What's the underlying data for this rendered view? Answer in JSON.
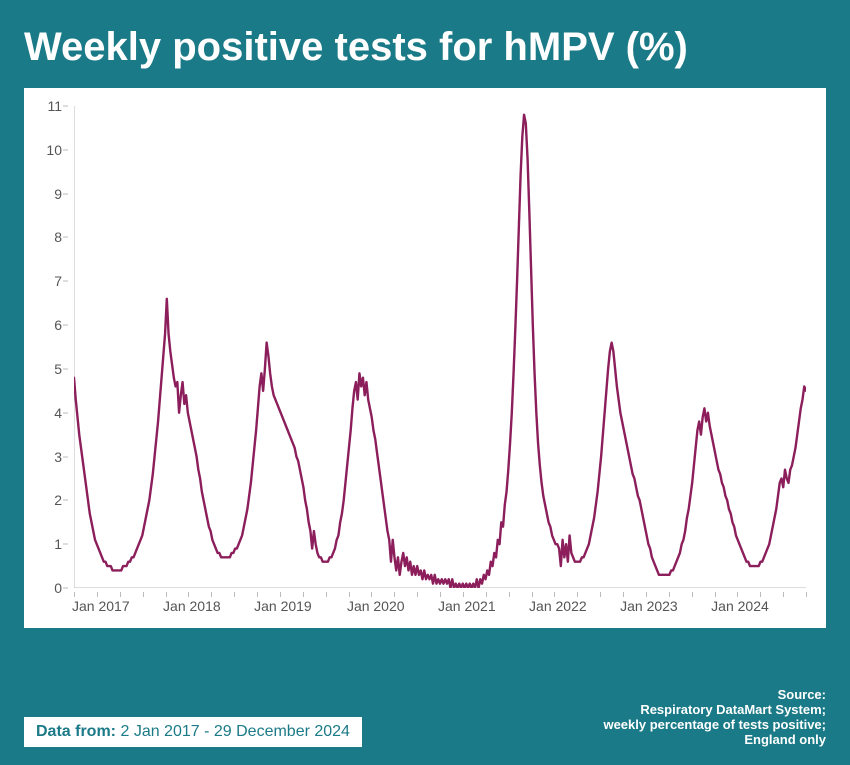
{
  "card": {
    "background_color": "#1b7a87",
    "title": "Weekly positive tests for hMPV (%)",
    "title_fontsize": 40,
    "title_color": "#ffffff"
  },
  "chart": {
    "type": "line",
    "panel_background": "#ffffff",
    "line_color": "#8b1e5b",
    "line_width": 2.4,
    "ylim": [
      0,
      11
    ],
    "ytick_step": 1,
    "y_tick_labels": [
      "0",
      "1",
      "2",
      "3",
      "4",
      "5",
      "6",
      "7",
      "8",
      "9",
      "10",
      "11"
    ],
    "y_label_fontsize": 14,
    "axis_color": "#bbbbbb",
    "tick_length": 5,
    "x_labels": [
      "Jan 2017",
      "Jan 2018",
      "Jan 2019",
      "Jan 2020",
      "Jan 2021",
      "Jan 2022",
      "Jan 2023",
      "Jan 2024"
    ],
    "x_label_fontsize": 14,
    "n_ticks_per_year": 4,
    "series": [
      4.8,
      4.3,
      3.9,
      3.5,
      3.2,
      2.9,
      2.6,
      2.3,
      2.0,
      1.7,
      1.5,
      1.3,
      1.1,
      1.0,
      0.9,
      0.8,
      0.7,
      0.6,
      0.6,
      0.5,
      0.5,
      0.5,
      0.4,
      0.4,
      0.4,
      0.4,
      0.4,
      0.4,
      0.5,
      0.5,
      0.5,
      0.6,
      0.6,
      0.7,
      0.7,
      0.8,
      0.9,
      1.0,
      1.1,
      1.2,
      1.4,
      1.6,
      1.8,
      2.0,
      2.3,
      2.6,
      3.0,
      3.4,
      3.8,
      4.3,
      4.8,
      5.3,
      5.8,
      6.6,
      5.8,
      5.4,
      5.1,
      4.8,
      4.6,
      4.7,
      4.0,
      4.4,
      4.7,
      4.2,
      4.4,
      4.0,
      3.8,
      3.6,
      3.4,
      3.2,
      3.0,
      2.7,
      2.5,
      2.2,
      2.0,
      1.8,
      1.6,
      1.4,
      1.3,
      1.1,
      1.0,
      0.9,
      0.8,
      0.8,
      0.7,
      0.7,
      0.7,
      0.7,
      0.7,
      0.7,
      0.8,
      0.8,
      0.9,
      0.9,
      1.0,
      1.1,
      1.2,
      1.4,
      1.6,
      1.8,
      2.1,
      2.4,
      2.8,
      3.2,
      3.6,
      4.1,
      4.6,
      4.9,
      4.5,
      5.0,
      5.6,
      5.3,
      4.9,
      4.6,
      4.4,
      4.3,
      4.2,
      4.1,
      4.0,
      3.9,
      3.8,
      3.7,
      3.6,
      3.5,
      3.4,
      3.3,
      3.2,
      3.0,
      2.9,
      2.7,
      2.5,
      2.3,
      2.0,
      1.8,
      1.5,
      1.3,
      0.9,
      1.3,
      1.0,
      0.8,
      0.7,
      0.7,
      0.6,
      0.6,
      0.6,
      0.6,
      0.7,
      0.7,
      0.8,
      0.9,
      1.1,
      1.2,
      1.5,
      1.7,
      2.0,
      2.4,
      2.8,
      3.2,
      3.6,
      4.1,
      4.5,
      4.7,
      4.3,
      4.9,
      4.6,
      4.8,
      4.4,
      4.7,
      4.3,
      4.1,
      3.9,
      3.6,
      3.4,
      3.1,
      2.8,
      2.5,
      2.2,
      1.9,
      1.6,
      1.3,
      1.1,
      0.6,
      1.1,
      0.7,
      0.4,
      0.7,
      0.3,
      0.6,
      0.8,
      0.5,
      0.7,
      0.4,
      0.6,
      0.3,
      0.5,
      0.3,
      0.5,
      0.3,
      0.4,
      0.2,
      0.4,
      0.2,
      0.3,
      0.2,
      0.3,
      0.1,
      0.3,
      0.1,
      0.2,
      0.1,
      0.2,
      0.1,
      0.2,
      0.1,
      0.2,
      0.0,
      0.2,
      0.0,
      0.1,
      0.0,
      0.1,
      0.0,
      0.1,
      0.0,
      0.1,
      0.0,
      0.1,
      0.0,
      0.1,
      0.0,
      0.2,
      0.0,
      0.2,
      0.1,
      0.3,
      0.2,
      0.4,
      0.3,
      0.6,
      0.5,
      0.8,
      0.7,
      1.1,
      1.0,
      1.5,
      1.4,
      1.9,
      2.2,
      2.7,
      3.3,
      4.0,
      4.9,
      5.9,
      7.0,
      8.2,
      9.4,
      10.3,
      10.8,
      10.6,
      9.8,
      8.6,
      7.3,
      6.0,
      4.9,
      4.0,
      3.3,
      2.8,
      2.4,
      2.1,
      1.9,
      1.7,
      1.5,
      1.4,
      1.2,
      1.1,
      1.0,
      1.0,
      0.9,
      0.5,
      1.1,
      0.7,
      1.0,
      0.6,
      1.2,
      0.8,
      0.7,
      0.6,
      0.6,
      0.6,
      0.6,
      0.7,
      0.7,
      0.8,
      0.9,
      1.0,
      1.2,
      1.4,
      1.6,
      1.9,
      2.2,
      2.6,
      3.0,
      3.5,
      4.0,
      4.5,
      5.0,
      5.4,
      5.6,
      5.4,
      5.0,
      4.6,
      4.3,
      4.0,
      3.8,
      3.6,
      3.4,
      3.2,
      3.0,
      2.8,
      2.6,
      2.5,
      2.3,
      2.1,
      2.0,
      1.8,
      1.6,
      1.4,
      1.2,
      1.0,
      0.9,
      0.7,
      0.6,
      0.5,
      0.4,
      0.3,
      0.3,
      0.3,
      0.3,
      0.3,
      0.3,
      0.3,
      0.4,
      0.4,
      0.5,
      0.6,
      0.7,
      0.8,
      1.0,
      1.1,
      1.3,
      1.6,
      1.8,
      2.1,
      2.4,
      2.8,
      3.2,
      3.6,
      3.8,
      3.5,
      3.9,
      4.1,
      3.8,
      4.0,
      3.7,
      3.5,
      3.3,
      3.1,
      2.9,
      2.7,
      2.6,
      2.4,
      2.3,
      2.1,
      2.0,
      1.8,
      1.7,
      1.5,
      1.4,
      1.2,
      1.1,
      1.0,
      0.9,
      0.8,
      0.7,
      0.6,
      0.6,
      0.5,
      0.5,
      0.5,
      0.5,
      0.5,
      0.5,
      0.6,
      0.6,
      0.7,
      0.8,
      0.9,
      1.0,
      1.2,
      1.4,
      1.6,
      1.8,
      2.1,
      2.4,
      2.5,
      2.3,
      2.7,
      2.5,
      2.4,
      2.7,
      2.8,
      3.0,
      3.2,
      3.5,
      3.8,
      4.1,
      4.3,
      4.6,
      4.5
    ]
  },
  "footer": {
    "data_from_label": "Data from:",
    "data_from_range": "2 Jan 2017 - 29 December 2024",
    "data_from_fontsize": 16,
    "source_heading": "Source:",
    "source_lines": [
      "Respiratory DataMart System;",
      "weekly percentage of tests positive;",
      "England only"
    ],
    "source_fontsize": 13,
    "source_color": "#ffffff"
  }
}
